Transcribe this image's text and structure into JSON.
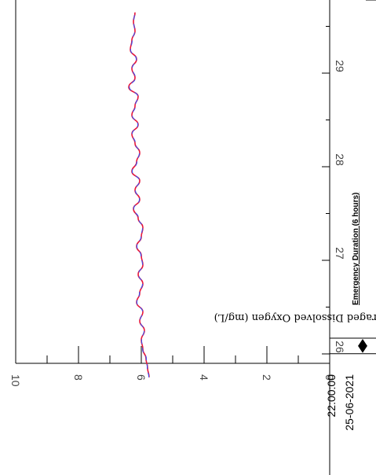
{
  "chart_data": {
    "type": "line",
    "orientation": "rotated-90-clockwise",
    "ylabel": "Depth-averaged Dissolved Oxygen (mg/L)",
    "ylim": [
      0,
      10
    ],
    "yticks": [
      "0",
      "2",
      "4",
      "6",
      "8",
      "10"
    ],
    "xlim": [
      25.75,
      29.65
    ],
    "xticks": [
      "26",
      "27",
      "28",
      "29"
    ],
    "x_start_label": [
      "22:00:00",
      "25-06-2021"
    ],
    "grid": false,
    "annotation": {
      "text": "Emergency Duration  (6 hours)",
      "x_start": 25.75,
      "x_end": 26.0
    },
    "series": [
      {
        "color": "#e8173a",
        "x": [
          25.75,
          25.85,
          25.95,
          26.05,
          26.15,
          26.25,
          26.35,
          26.45,
          26.55,
          26.65,
          26.75,
          26.85,
          26.95,
          27.05,
          27.15,
          27.25,
          27.35,
          27.45,
          27.55,
          27.65,
          27.75,
          27.85,
          27.95,
          28.05,
          28.15,
          28.25,
          28.35,
          28.45,
          28.55,
          28.65,
          28.75,
          28.85,
          28.95,
          29.05,
          29.15,
          29.25,
          29.35,
          29.45,
          29.55,
          29.65
        ],
        "values": [
          5.75,
          5.8,
          5.85,
          5.95,
          6.0,
          5.9,
          6.05,
          5.95,
          6.15,
          6.05,
          5.95,
          6.1,
          5.95,
          6.0,
          6.15,
          6.0,
          5.95,
          6.1,
          6.25,
          6.05,
          6.2,
          6.05,
          6.3,
          6.15,
          6.05,
          6.2,
          6.3,
          6.1,
          6.3,
          6.2,
          6.1,
          6.4,
          6.2,
          6.3,
          6.15,
          6.35,
          6.3,
          6.2,
          6.25,
          6.2
        ]
      },
      {
        "color": "#3a4ef0",
        "x": [
          25.75,
          25.85,
          25.95,
          26.05,
          26.15,
          26.25,
          26.35,
          26.45,
          26.55,
          26.65,
          26.75,
          26.85,
          26.95,
          27.05,
          27.15,
          27.25,
          27.35,
          27.45,
          27.55,
          27.65,
          27.75,
          27.85,
          27.95,
          28.05,
          28.15,
          28.25,
          28.35,
          28.45,
          28.55,
          28.65,
          28.75,
          28.85,
          28.95,
          29.05,
          29.15,
          29.25,
          29.35,
          29.45,
          29.55,
          29.65
        ],
        "values": [
          5.76,
          5.81,
          5.84,
          5.96,
          5.99,
          5.91,
          6.04,
          5.96,
          6.14,
          6.06,
          5.96,
          6.09,
          5.96,
          6.01,
          6.14,
          6.01,
          5.96,
          6.09,
          6.24,
          6.06,
          6.19,
          6.06,
          6.29,
          6.14,
          6.06,
          6.19,
          6.29,
          6.11,
          6.29,
          6.19,
          6.11,
          6.38,
          6.19,
          6.29,
          6.16,
          6.34,
          6.29,
          6.21,
          6.24,
          6.21
        ]
      }
    ]
  }
}
